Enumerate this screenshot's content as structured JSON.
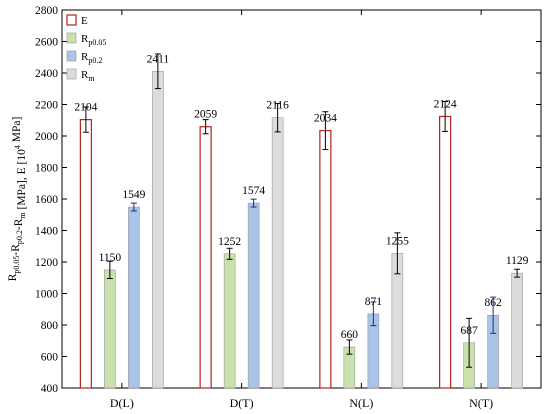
{
  "chart_data": {
    "type": "bar",
    "categories": [
      "D(L)",
      "D(T)",
      "N(L)",
      "N(T)"
    ],
    "ylim": [
      400,
      2800
    ],
    "yticks": [
      400,
      600,
      800,
      1000,
      1200,
      1400,
      1600,
      1800,
      2000,
      2200,
      2400,
      2600,
      2800
    ],
    "ylabel": {
      "base": "R",
      "parts": [
        {
          "text": "R",
          "sub": "p0.05"
        },
        {
          "text": "-R",
          "sub": "p0.2"
        },
        {
          "text": "-R",
          "sub": "m"
        },
        {
          "text": " [MPa], E [10"
        },
        {
          "text": "",
          "sup": "4"
        },
        {
          "text": " MPa]"
        }
      ]
    },
    "legend_position": "top-left",
    "series": [
      {
        "name": "E",
        "name_main": "E",
        "name_sub": "",
        "style": "outline",
        "color": "#b22222",
        "fill": "#ffffff",
        "values": [
          2104,
          2059,
          2034,
          2124
        ],
        "errors": [
          80,
          45,
          120,
          95
        ],
        "value_labels": [
          "2104",
          "2059",
          "2034",
          "2124"
        ]
      },
      {
        "name": "Rp0.05",
        "name_main": "R",
        "name_sub": "p0.05",
        "style": "filled",
        "color": "#c9e2ad",
        "fill": "#c9e2ad",
        "values": [
          1150,
          1252,
          660,
          687
        ],
        "errors": [
          55,
          35,
          45,
          155
        ],
        "value_labels": [
          "1150",
          "1252",
          "660",
          "687"
        ]
      },
      {
        "name": "Rp0.2",
        "name_main": "R",
        "name_sub": "p0.2",
        "style": "filled",
        "color": "#a9c4e6",
        "fill": "#a9c4e6",
        "values": [
          1549,
          1574,
          871,
          862
        ],
        "errors": [
          25,
          25,
          75,
          115
        ],
        "value_labels": [
          "1549",
          "1574",
          "871",
          "862"
        ]
      },
      {
        "name": "Rm",
        "name_main": "R",
        "name_sub": "m",
        "style": "filled",
        "color": "#dcdcdc",
        "fill": "#dcdcdc",
        "values": [
          2411,
          2116,
          1255,
          1129
        ],
        "errors": [
          110,
          90,
          130,
          25
        ],
        "value_labels": [
          "2411",
          "2116",
          "1255",
          "1129"
        ]
      }
    ]
  }
}
